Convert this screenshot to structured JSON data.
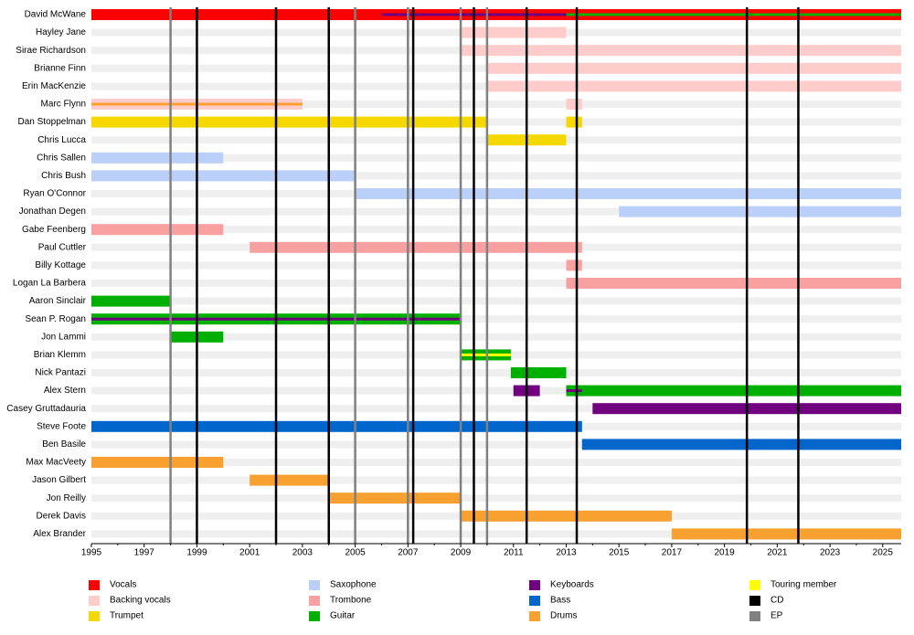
{
  "chart_data": {
    "type": "timeline",
    "xlim": [
      1995,
      2025.7
    ],
    "xticks": [
      1995,
      1997,
      1999,
      2001,
      2003,
      2005,
      2007,
      2009,
      2011,
      2013,
      2015,
      2017,
      2019,
      2021,
      2023,
      2025
    ],
    "rows": [
      {
        "name": "David McWane",
        "spans": [
          {
            "start": 1995,
            "end": 2025.7,
            "color": "#ff0000"
          },
          {
            "start": 2006,
            "end": 2025.7,
            "color": "#700080",
            "thin": true
          },
          {
            "start": 2013,
            "end": 2025.7,
            "color": "#00b000",
            "thin": true
          }
        ]
      },
      {
        "name": "Hayley Jane",
        "spans": [
          {
            "start": 2009,
            "end": 2013,
            "color": "#ffcccc"
          }
        ]
      },
      {
        "name": "Sirae Richardson",
        "spans": [
          {
            "start": 2009,
            "end": 2025.7,
            "color": "#ffcccc"
          }
        ]
      },
      {
        "name": "Brianne Finn",
        "spans": [
          {
            "start": 2010,
            "end": 2025.7,
            "color": "#ffcccc"
          }
        ]
      },
      {
        "name": "Erin MacKenzie",
        "spans": [
          {
            "start": 2010,
            "end": 2025.7,
            "color": "#ffcccc"
          }
        ]
      },
      {
        "name": "Marc Flynn",
        "spans": [
          {
            "start": 1995,
            "end": 2003,
            "color": "#ffcccc"
          },
          {
            "start": 1995,
            "end": 2003,
            "color": "#f8a030",
            "thin": true
          },
          {
            "start": 2013,
            "end": 2013.6,
            "color": "#ffcccc"
          }
        ]
      },
      {
        "name": "Dan Stoppelman",
        "spans": [
          {
            "start": 1995,
            "end": 2010,
            "color": "#f5d800"
          },
          {
            "start": 2013,
            "end": 2013.6,
            "color": "#f5d800"
          }
        ]
      },
      {
        "name": "Chris Lucca",
        "spans": [
          {
            "start": 2010,
            "end": 2013,
            "color": "#f5d800"
          }
        ]
      },
      {
        "name": "Chris Sallen",
        "spans": [
          {
            "start": 1995,
            "end": 2000,
            "color": "#bbd0f8"
          }
        ]
      },
      {
        "name": "Chris Bush",
        "spans": [
          {
            "start": 1995,
            "end": 2005,
            "color": "#bbd0f8"
          }
        ]
      },
      {
        "name": "Ryan O'Connor",
        "spans": [
          {
            "start": 2005,
            "end": 2025.7,
            "color": "#bbd0f8"
          }
        ]
      },
      {
        "name": "Jonathan Degen",
        "spans": [
          {
            "start": 2015,
            "end": 2025.7,
            "color": "#bbd0f8"
          }
        ]
      },
      {
        "name": "Gabe Feenberg",
        "spans": [
          {
            "start": 1995,
            "end": 2000,
            "color": "#f9a0a0"
          }
        ]
      },
      {
        "name": "Paul Cuttler",
        "spans": [
          {
            "start": 2001,
            "end": 2013.6,
            "color": "#f9a0a0"
          }
        ]
      },
      {
        "name": "Billy Kottage",
        "spans": [
          {
            "start": 2013,
            "end": 2013.6,
            "color": "#f9a0a0"
          }
        ]
      },
      {
        "name": "Logan La Barbera",
        "spans": [
          {
            "start": 2013,
            "end": 2025.7,
            "color": "#f9a0a0"
          }
        ]
      },
      {
        "name": "Aaron Sinclair",
        "spans": [
          {
            "start": 1995,
            "end": 1998,
            "color": "#00b000"
          }
        ]
      },
      {
        "name": "Sean P. Rogan",
        "spans": [
          {
            "start": 1995,
            "end": 2009,
            "color": "#00b000"
          },
          {
            "start": 1995,
            "end": 2009,
            "color": "#700080",
            "thin": true
          }
        ]
      },
      {
        "name": "Jon Lammi",
        "spans": [
          {
            "start": 1998,
            "end": 2000,
            "color": "#00b000"
          }
        ]
      },
      {
        "name": "Brian Klemm",
        "spans": [
          {
            "start": 2009,
            "end": 2010.9,
            "color": "#00b000"
          },
          {
            "start": 2009,
            "end": 2010.9,
            "color": "#ffff00",
            "thin": true
          }
        ]
      },
      {
        "name": "Nick Pantazi",
        "spans": [
          {
            "start": 2010.9,
            "end": 2013,
            "color": "#00b000"
          }
        ]
      },
      {
        "name": "Alex Stern",
        "spans": [
          {
            "start": 2011,
            "end": 2012,
            "color": "#700080"
          },
          {
            "start": 2013,
            "end": 2025.7,
            "color": "#00b000"
          },
          {
            "start": 2013,
            "end": 2013.6,
            "color": "#700080",
            "thin": true
          }
        ]
      },
      {
        "name": "Casey Gruttadauria",
        "spans": [
          {
            "start": 2014,
            "end": 2025.7,
            "color": "#700080"
          }
        ]
      },
      {
        "name": "Steve Foote",
        "spans": [
          {
            "start": 1995,
            "end": 2013.6,
            "color": "#0066cc"
          }
        ]
      },
      {
        "name": "Ben Basile",
        "spans": [
          {
            "start": 2013.6,
            "end": 2025.7,
            "color": "#0066cc"
          }
        ]
      },
      {
        "name": "Max MacVeety",
        "spans": [
          {
            "start": 1995,
            "end": 2000,
            "color": "#f8a030"
          }
        ]
      },
      {
        "name": "Jason Gilbert",
        "spans": [
          {
            "start": 2001,
            "end": 2004,
            "color": "#f8a030"
          }
        ]
      },
      {
        "name": "Jon Reilly",
        "spans": [
          {
            "start": 2004,
            "end": 2009,
            "color": "#f8a030"
          }
        ]
      },
      {
        "name": "Derek Davis",
        "spans": [
          {
            "start": 2009,
            "end": 2017,
            "color": "#f8a030"
          }
        ]
      },
      {
        "name": "Alex Brander",
        "spans": [
          {
            "start": 2017,
            "end": 2025.7,
            "color": "#f8a030"
          }
        ]
      }
    ],
    "cd": [
      1999,
      2002,
      2004,
      2007.2,
      2009.5,
      2011.5,
      2013.4,
      2019.85,
      2021.8
    ],
    "cd_color": "#000000",
    "ep": [
      1998,
      2005,
      2007,
      2009,
      2010
    ],
    "ep_color": "#808080",
    "legend": [
      {
        "name": "Vocals",
        "color": "#ff0000"
      },
      {
        "name": "Backing vocals",
        "color": "#ffcccc"
      },
      {
        "name": "Trumpet",
        "color": "#f5d800"
      },
      {
        "name": "Saxophone",
        "color": "#bbd0f8"
      },
      {
        "name": "Trombone",
        "color": "#f9a0a0"
      },
      {
        "name": "Guitar",
        "color": "#00b000"
      },
      {
        "name": "Keyboards",
        "color": "#700080"
      },
      {
        "name": "Bass",
        "color": "#0066cc"
      },
      {
        "name": "Drums",
        "color": "#f8a030"
      },
      {
        "name": "Touring member",
        "color": "#ffff00"
      },
      {
        "name": "CD",
        "color": "#000000"
      },
      {
        "name": "EP",
        "color": "#808080"
      }
    ]
  }
}
